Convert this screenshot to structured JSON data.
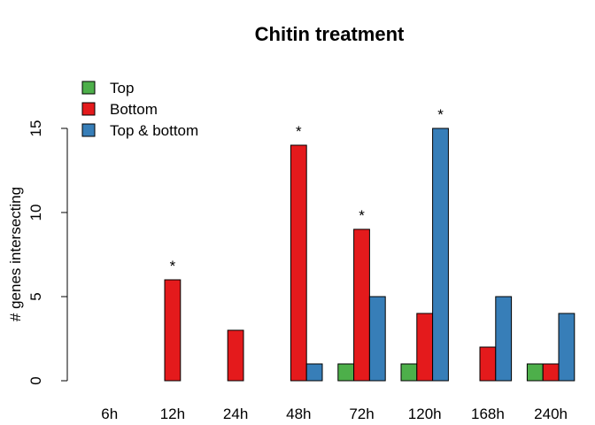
{
  "chart_data": {
    "type": "bar",
    "title": "Chitin treatment",
    "xlabel": "",
    "ylabel": "# genes intersecting",
    "categories": [
      "6h",
      "12h",
      "24h",
      "48h",
      "72h",
      "120h",
      "168h",
      "240h"
    ],
    "series": [
      {
        "name": "Top",
        "color": "#4DAF4A",
        "values": [
          0,
          0,
          0,
          0,
          1,
          1,
          0,
          1
        ]
      },
      {
        "name": "Bottom",
        "color": "#E41A1C",
        "values": [
          0,
          6,
          3,
          14,
          9,
          4,
          2,
          1
        ]
      },
      {
        "name": "Top & bottom",
        "color": "#377EB8",
        "values": [
          0,
          0,
          0,
          1,
          5,
          15,
          5,
          4
        ]
      }
    ],
    "ylim": [
      0,
      15
    ],
    "yticks": [
      0,
      5,
      10,
      15
    ],
    "grid": false,
    "legend_position": "top-left",
    "annotations": [
      {
        "text": "*",
        "category": "12h",
        "series": "Bottom"
      },
      {
        "text": "*",
        "category": "48h",
        "series": "Bottom"
      },
      {
        "text": "*",
        "category": "72h",
        "series": "Bottom"
      },
      {
        "text": "*",
        "category": "120h",
        "series": "Top & bottom"
      }
    ]
  }
}
